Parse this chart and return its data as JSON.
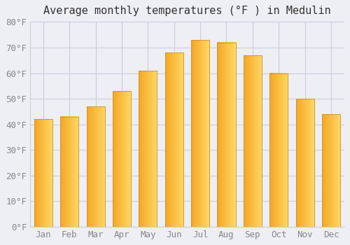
{
  "title": "Average monthly temperatures (°F ) in Medulin",
  "months": [
    "Jan",
    "Feb",
    "Mar",
    "Apr",
    "May",
    "Jun",
    "Jul",
    "Aug",
    "Sep",
    "Oct",
    "Nov",
    "Dec"
  ],
  "values": [
    42,
    43,
    47,
    53,
    61,
    68,
    73,
    72,
    67,
    60,
    50,
    44
  ],
  "bar_color_left": "#F5A623",
  "bar_color_right": "#FFD966",
  "bar_border_color": "#C8922A",
  "background_color": "#eeeef5",
  "plot_bg_color": "#eeeef5",
  "ylim": [
    0,
    80
  ],
  "ytick_step": 10,
  "title_fontsize": 11,
  "tick_fontsize": 9,
  "grid_color": "#ccccdd",
  "bar_width": 0.7
}
